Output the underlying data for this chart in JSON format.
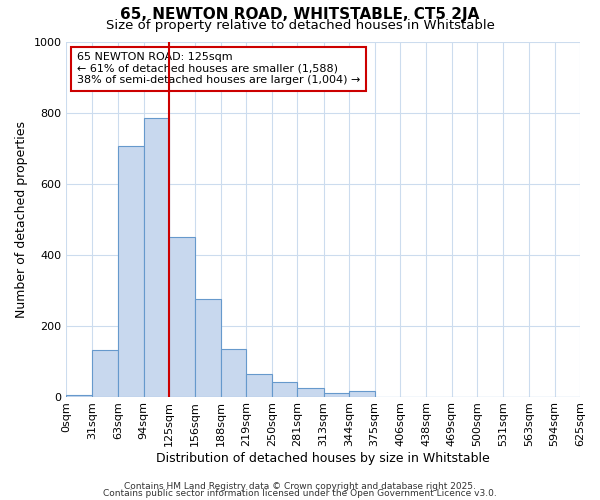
{
  "title1": "65, NEWTON ROAD, WHITSTABLE, CT5 2JA",
  "title2": "Size of property relative to detached houses in Whitstable",
  "xlabel": "Distribution of detached houses by size in Whitstable",
  "ylabel": "Number of detached properties",
  "bin_edges": [
    0,
    31,
    63,
    94,
    125,
    156,
    188,
    219,
    250,
    281,
    313,
    344,
    375,
    406,
    438,
    469,
    500,
    531,
    563,
    594,
    625
  ],
  "bar_heights": [
    5,
    130,
    705,
    785,
    450,
    275,
    135,
    65,
    40,
    25,
    10,
    15,
    0,
    0,
    0,
    0,
    0,
    0,
    0,
    0
  ],
  "bar_color": "#c8d8ee",
  "bar_edge_color": "#6699cc",
  "bar_edge_width": 0.8,
  "red_line_x": 125,
  "red_line_color": "#cc0000",
  "ylim": [
    0,
    1000
  ],
  "xlim": [
    0,
    625
  ],
  "annotation_text": "65 NEWTON ROAD: 125sqm\n← 61% of detached houses are smaller (1,588)\n38% of semi-detached houses are larger (1,004) →",
  "annotation_box_color": "#ffffff",
  "annotation_box_edge_color": "#cc0000",
  "footer1": "Contains HM Land Registry data © Crown copyright and database right 2025.",
  "footer2": "Contains public sector information licensed under the Open Government Licence v3.0.",
  "bg_color": "#ffffff",
  "grid_color": "#ccdcee",
  "tick_labels": [
    "0sqm",
    "31sqm",
    "63sqm",
    "94sqm",
    "125sqm",
    "156sqm",
    "188sqm",
    "219sqm",
    "250sqm",
    "281sqm",
    "313sqm",
    "344sqm",
    "375sqm",
    "406sqm",
    "438sqm",
    "469sqm",
    "500sqm",
    "531sqm",
    "563sqm",
    "594sqm",
    "625sqm"
  ],
  "title1_fontsize": 11,
  "title2_fontsize": 9.5,
  "axis_label_fontsize": 9,
  "tick_fontsize": 8
}
